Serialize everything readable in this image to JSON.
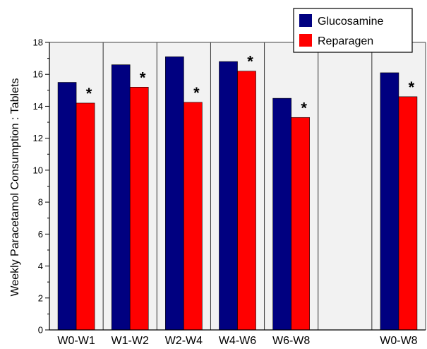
{
  "chart_data": {
    "type": "bar",
    "title": "",
    "xlabel": "",
    "ylabel": "Weekly Paracetamol Consumption : Tablets",
    "ylim": [
      0,
      18
    ],
    "yticks": [
      0,
      2,
      4,
      6,
      8,
      10,
      12,
      14,
      16,
      18
    ],
    "grid": false,
    "legend_position": "top-right",
    "categories": [
      "W0-W1",
      "W1-W2",
      "W2-W4",
      "W4-W6",
      "W6-W8",
      "",
      "W0-W8"
    ],
    "series": [
      {
        "name": "Glucosamine",
        "color": "#000080",
        "values": [
          15.5,
          16.6,
          17.1,
          16.8,
          14.5,
          null,
          16.1
        ]
      },
      {
        "name": "Reparagen",
        "color": "#ff0000",
        "values": [
          14.2,
          15.2,
          14.25,
          16.2,
          13.3,
          null,
          14.6
        ]
      }
    ],
    "annotations": [
      "*",
      "*",
      "*",
      "*",
      "*",
      "",
      "*"
    ]
  }
}
